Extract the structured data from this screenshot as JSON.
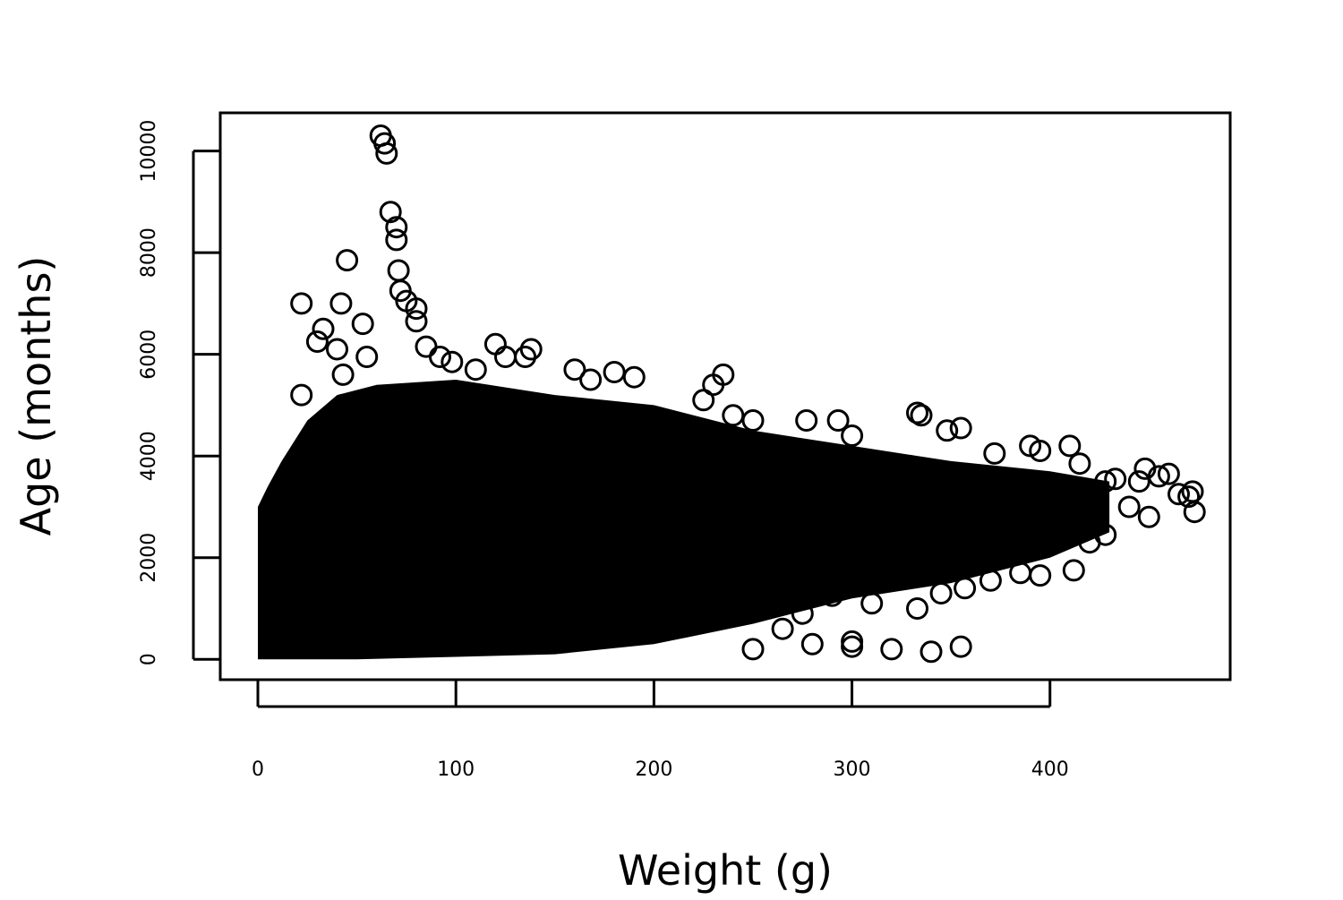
{
  "chart_data": {
    "type": "scatter",
    "title": "",
    "xlabel": "Weight (g)",
    "ylabel": "Age (months)",
    "xlim": [
      -19,
      491
    ],
    "ylim": [
      -400,
      10750
    ],
    "xticks": [
      0,
      100,
      200,
      300,
      400
    ],
    "yticks": [
      0,
      2000,
      4000,
      6000,
      8000,
      10000
    ],
    "marker": "open-circle",
    "grid": false,
    "legend": "none",
    "dense_region_outline": [
      [
        0,
        0
      ],
      [
        0,
        3000
      ],
      [
        5,
        3400
      ],
      [
        12,
        3900
      ],
      [
        25,
        4700
      ],
      [
        40,
        5200
      ],
      [
        60,
        5400
      ],
      [
        100,
        5500
      ],
      [
        150,
        5200
      ],
      [
        200,
        5000
      ],
      [
        250,
        4500
      ],
      [
        300,
        4200
      ],
      [
        350,
        3900
      ],
      [
        400,
        3700
      ],
      [
        430,
        3500
      ],
      [
        430,
        2500
      ],
      [
        400,
        2000
      ],
      [
        350,
        1500
      ],
      [
        300,
        1200
      ],
      [
        250,
        700
      ],
      [
        200,
        300
      ],
      [
        150,
        100
      ],
      [
        100,
        50
      ],
      [
        50,
        0
      ]
    ],
    "points": [
      [
        62,
        10300
      ],
      [
        64,
        10150
      ],
      [
        65,
        9950
      ],
      [
        67,
        8800
      ],
      [
        70,
        8500
      ],
      [
        70,
        8250
      ],
      [
        45,
        7850
      ],
      [
        71,
        7650
      ],
      [
        72,
        7250
      ],
      [
        75,
        7050
      ],
      [
        80,
        6900
      ],
      [
        80,
        6650
      ],
      [
        22,
        7000
      ],
      [
        42,
        7000
      ],
      [
        53,
        6600
      ],
      [
        33,
        6500
      ],
      [
        30,
        6250
      ],
      [
        40,
        6100
      ],
      [
        120,
        6200
      ],
      [
        138,
        6100
      ],
      [
        135,
        5950
      ],
      [
        125,
        5950
      ],
      [
        98,
        5850
      ],
      [
        92,
        5950
      ],
      [
        160,
        5700
      ],
      [
        180,
        5650
      ],
      [
        190,
        5550
      ],
      [
        168,
        5500
      ],
      [
        235,
        5600
      ],
      [
        230,
        5400
      ],
      [
        22,
        5200
      ],
      [
        55,
        5950
      ],
      [
        43,
        5600
      ],
      [
        85,
        6150
      ],
      [
        110,
        5700
      ],
      [
        225,
        5100
      ],
      [
        240,
        4800
      ],
      [
        250,
        4700
      ],
      [
        277,
        4700
      ],
      [
        293,
        4700
      ],
      [
        300,
        4400
      ],
      [
        333,
        4850
      ],
      [
        335,
        4800
      ],
      [
        348,
        4500
      ],
      [
        355,
        4550
      ],
      [
        390,
        4200
      ],
      [
        410,
        4200
      ],
      [
        372,
        4050
      ],
      [
        395,
        4100
      ],
      [
        415,
        3850
      ],
      [
        428,
        3500
      ],
      [
        433,
        3550
      ],
      [
        445,
        3500
      ],
      [
        448,
        3750
      ],
      [
        455,
        3600
      ],
      [
        460,
        3650
      ],
      [
        465,
        3250
      ],
      [
        470,
        3200
      ],
      [
        472,
        3300
      ],
      [
        473,
        2900
      ],
      [
        450,
        2800
      ],
      [
        440,
        3000
      ],
      [
        428,
        2450
      ],
      [
        420,
        2300
      ],
      [
        412,
        1750
      ],
      [
        395,
        1650
      ],
      [
        385,
        1700
      ],
      [
        370,
        1550
      ],
      [
        357,
        1400
      ],
      [
        345,
        1300
      ],
      [
        333,
        1000
      ],
      [
        310,
        1100
      ],
      [
        290,
        1250
      ],
      [
        280,
        300
      ],
      [
        300,
        250
      ],
      [
        320,
        200
      ],
      [
        340,
        150
      ],
      [
        355,
        250
      ],
      [
        250,
        200
      ],
      [
        265,
        600
      ],
      [
        300,
        350
      ],
      [
        275,
        900
      ]
    ]
  }
}
